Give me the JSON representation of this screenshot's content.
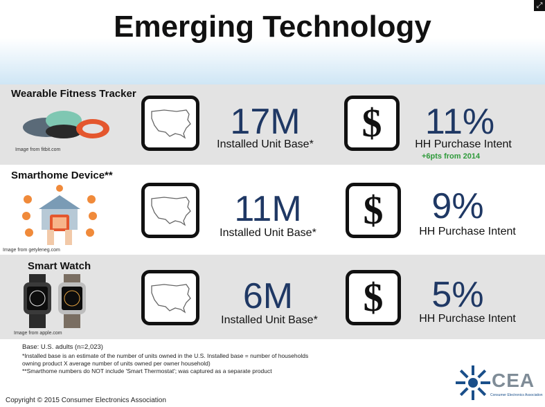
{
  "title": "Emerging Technology",
  "rows": [
    {
      "name": "Wearable Fitness Tracker",
      "image_credit": "Image from fitbit.com",
      "installed_value": "17M",
      "installed_label": "Installed Unit Base*",
      "intent_value": "11%",
      "intent_label": "HH Purchase Intent",
      "intent_change": "+6pts from 2014"
    },
    {
      "name": "Smarthome Device**",
      "image_credit": "Image from getyleneg.com",
      "installed_value": "11M",
      "installed_label": "Installed Unit Base*",
      "intent_value": "9%",
      "intent_label": "HH Purchase Intent"
    },
    {
      "name": "Smart Watch",
      "image_credit": "Image from apple.com",
      "installed_value": "6M",
      "installed_label": "Installed Unit Base*",
      "intent_value": "5%",
      "intent_label": "HH Purchase Intent"
    }
  ],
  "icons": {
    "map": "us-map-icon",
    "dollar_glyph": "$"
  },
  "footnotes": {
    "base": "Base: U.S. adults (n=2,023)",
    "installed_def_1": "*Installed base is an estimate of the number of units owned in the U.S. Installed base = number of households",
    "installed_def_2": "owning product X average number of units owned per owner household)",
    "smarthome_note": "**Smarthome numbers do NOT include 'Smart Thermostat'; was captured as a separate product"
  },
  "copyright": "Copyright © 2015 Consumer Electronics Association",
  "logo": {
    "text": "CEA",
    "subtitle": "Consumer Electronics Association"
  },
  "colors": {
    "number_blue": "#1f3864",
    "delta_green": "#2e9a3a",
    "band_gray": "#e3e3e3"
  }
}
